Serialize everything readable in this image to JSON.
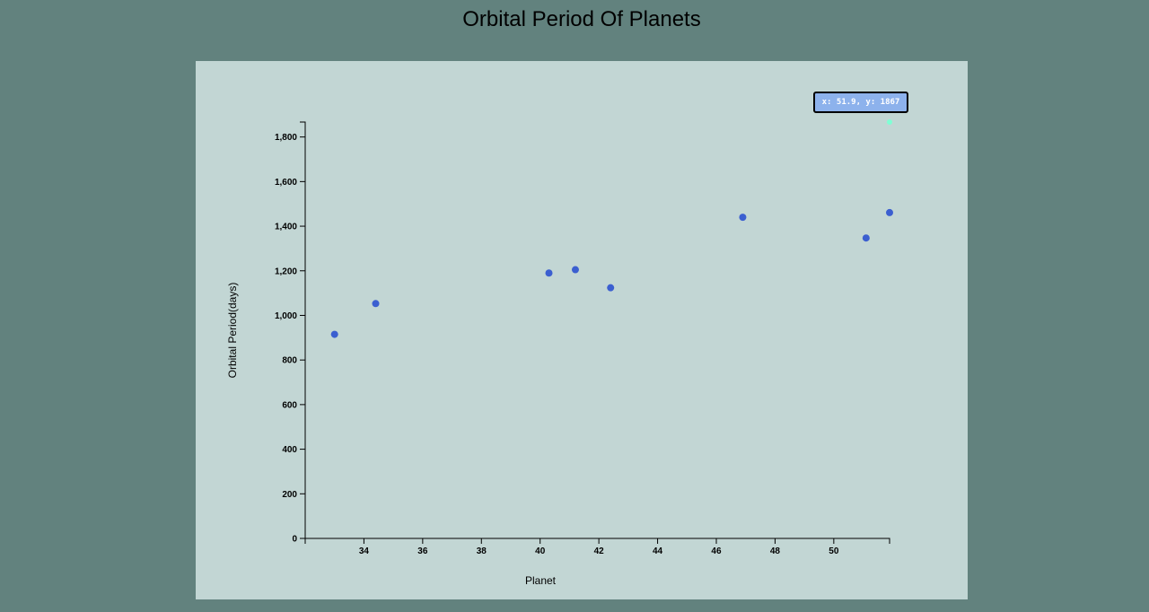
{
  "page": {
    "title": "Orbital Period Of Planets"
  },
  "colors": {
    "background": "#62827e",
    "plot_panel": "#c2d6d4",
    "point": "#3b5fd0",
    "tooltip_bg": "#8db2ec",
    "highlight_point": "#7fffd4"
  },
  "tooltip": {
    "text": "x: 51.9, y: 1867"
  },
  "chart_data": {
    "type": "scatter",
    "title": "Orbital Period Of Planets",
    "xlabel": "Planet",
    "ylabel": "Orbital Period(days)",
    "xlim": [
      32.0,
      51.9
    ],
    "ylim": [
      0,
      1867
    ],
    "x_ticks": [
      34,
      36,
      38,
      40,
      42,
      44,
      46,
      48,
      50
    ],
    "x_tick_labels": [
      "34",
      "36",
      "38",
      "40",
      "42",
      "44",
      "46",
      "48",
      "50"
    ],
    "y_ticks": [
      0,
      200,
      400,
      600,
      800,
      1000,
      1200,
      1400,
      1600,
      1800
    ],
    "y_tick_labels": [
      "0",
      "200",
      "400",
      "600",
      "800",
      "1,000",
      "1,200",
      "1,400",
      "1,600",
      "1,800"
    ],
    "grid": false,
    "points": [
      {
        "x": 33.0,
        "y": 915
      },
      {
        "x": 34.4,
        "y": 1053
      },
      {
        "x": 40.3,
        "y": 1190
      },
      {
        "x": 41.2,
        "y": 1205
      },
      {
        "x": 42.4,
        "y": 1124
      },
      {
        "x": 46.9,
        "y": 1440
      },
      {
        "x": 51.1,
        "y": 1347
      },
      {
        "x": 51.9,
        "y": 1461
      }
    ],
    "highlighted_point": {
      "x": 51.9,
      "y": 1867
    }
  }
}
